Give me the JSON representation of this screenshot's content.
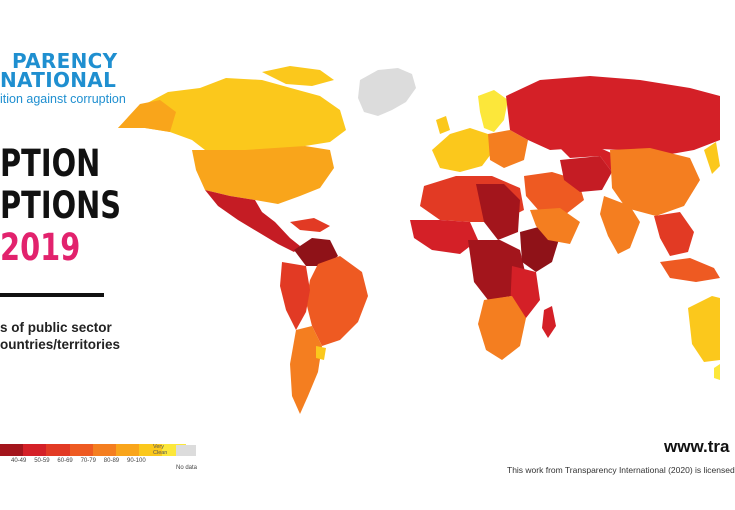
{
  "brand": {
    "line1": "PARENCY",
    "line2": "NATIONAL",
    "tagline": "ition against corruption"
  },
  "title": {
    "line1": "PTION",
    "line2": "PTIONS",
    "year": "2019"
  },
  "subtitle": {
    "line1": "s of public sector",
    "line2": "ountries/territories"
  },
  "legend": {
    "labels": [
      "40-49",
      "50-59",
      "60-69",
      "70-79",
      "80-89",
      "90-100"
    ],
    "clean_label_1": "Very",
    "clean_label_2": "Clean",
    "nodata_label": "No data",
    "colors": [
      "#a3151c",
      "#d42027",
      "#e23a24",
      "#ee5a22",
      "#f47e20",
      "#f9a51b",
      "#fbc81c",
      "#fce73a"
    ]
  },
  "footer": {
    "url": "www.tra",
    "credit": "This work from Transparency International (2020) is licensed"
  }
}
